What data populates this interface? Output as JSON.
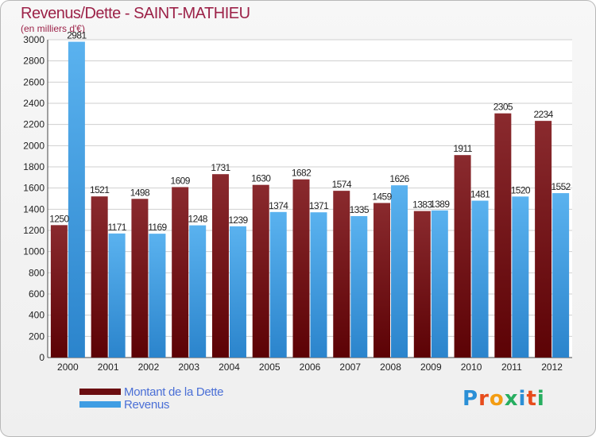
{
  "header": {
    "title": "Revenus/Dette - SAINT-MATHIEU",
    "subtitle": "(en milliers d'€)"
  },
  "colors": {
    "dette": "#7b1a1e",
    "revenus": "#3f9de3",
    "title": "#9c2248",
    "legend_text": "#4a6fd6"
  },
  "legend": {
    "items": [
      {
        "label": "Montant de la Dette",
        "color": "#6b0d10"
      },
      {
        "label": "Revenus",
        "color": "#3f9de3"
      }
    ]
  },
  "logo": {
    "text": "Proxiti",
    "letter_colors": [
      "#2b8fd6",
      "#e74c1c",
      "#f39c12",
      "#27ae60",
      "#2b8fd6",
      "#e74c1c",
      "#27ae60"
    ]
  },
  "chart_data": {
    "type": "bar",
    "categories": [
      "2000",
      "2001",
      "2002",
      "2003",
      "2004",
      "2005",
      "2006",
      "2007",
      "2008",
      "2009",
      "2010",
      "2011",
      "2012"
    ],
    "series": [
      {
        "name": "Montant de la Dette",
        "values": [
          1250,
          1521,
          1498,
          1609,
          1731,
          1630,
          1682,
          1574,
          1459,
          1383,
          1911,
          2305,
          2234
        ]
      },
      {
        "name": "Revenus",
        "values": [
          2981,
          1171,
          1169,
          1248,
          1239,
          1374,
          1371,
          1335,
          1626,
          1389,
          1481,
          1520,
          1552
        ]
      }
    ],
    "ylim": [
      0,
      3000
    ],
    "yticks": [
      0,
      200,
      400,
      600,
      800,
      1000,
      1200,
      1400,
      1600,
      1800,
      2000,
      2200,
      2400,
      2600,
      2800,
      3000
    ],
    "grid": true
  }
}
